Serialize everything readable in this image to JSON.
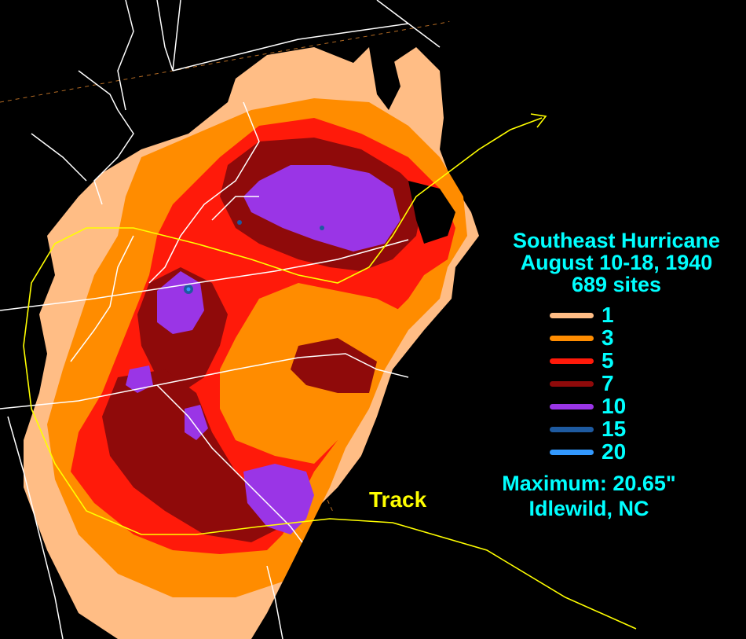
{
  "title": {
    "line1": "Southeast Hurricane",
    "line2": "August 10-18, 1940",
    "line3": "689 sites"
  },
  "legend": [
    {
      "label": "1",
      "color": "#ffbd85"
    },
    {
      "label": "3",
      "color": "#ff8c00"
    },
    {
      "label": "5",
      "color": "#ff1a0a"
    },
    {
      "label": "7",
      "color": "#8f0a0a"
    },
    {
      "label": "10",
      "color": "#9a35e6"
    },
    {
      "label": "15",
      "color": "#1e5aa0"
    },
    {
      "label": "20",
      "color": "#3399ff"
    }
  ],
  "maximum": {
    "line1": "Maximum:  20.65\"",
    "line2": "Idlewild, NC"
  },
  "track_label": "Track",
  "colors": {
    "background": "#000000",
    "boundaries": "#ffffff",
    "track": "#ffff00",
    "text": "#00ffff"
  }
}
